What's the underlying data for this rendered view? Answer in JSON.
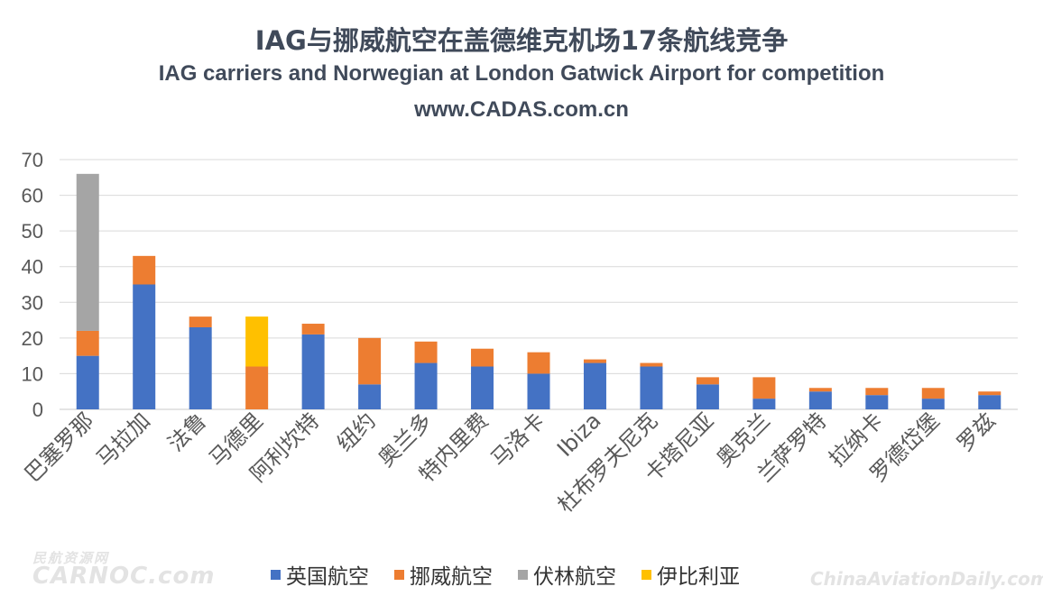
{
  "title_cn": "IAG与挪威航空在盖德维克机场17条航线竞争",
  "title_en": "IAG carriers and Norwegian at London Gatwick Airport for competition",
  "site": "www.CADAS.com.cn",
  "watermarks": {
    "left_top": "民航资源网",
    "left": "CARNOC.com",
    "right": "ChinaAviationDaily.com"
  },
  "chart_data": {
    "type": "bar",
    "stacked": true,
    "categories": [
      "巴塞罗那",
      "马拉加",
      "法鲁",
      "马德里",
      "阿利坎特",
      "纽约",
      "奥兰多",
      "特内里费",
      "马洛卡",
      "Ibiza",
      "杜布罗夫尼克",
      "卡塔尼亚",
      "奥克兰",
      "兰萨罗特",
      "拉纳卡",
      "罗德岱堡",
      "罗兹"
    ],
    "series": [
      {
        "name": "英国航空",
        "color": "#4472c4",
        "values": [
          15,
          35,
          23,
          0,
          21,
          7,
          13,
          12,
          10,
          13,
          12,
          7,
          3,
          5,
          4,
          3,
          4
        ]
      },
      {
        "name": "挪威航空",
        "color": "#ed7d31",
        "values": [
          7,
          8,
          3,
          12,
          3,
          13,
          6,
          5,
          6,
          1,
          1,
          2,
          6,
          1,
          2,
          3,
          1
        ]
      },
      {
        "name": "伏林航空",
        "color": "#a5a5a5",
        "values": [
          44,
          0,
          0,
          0,
          0,
          0,
          0,
          0,
          0,
          0,
          0,
          0,
          0,
          0,
          0,
          0,
          0
        ]
      },
      {
        "name": "伊比利亚",
        "color": "#ffc000",
        "values": [
          0,
          0,
          0,
          14,
          0,
          0,
          0,
          0,
          0,
          0,
          0,
          0,
          0,
          0,
          0,
          0,
          0
        ]
      }
    ],
    "ylim": [
      0,
      70
    ],
    "yticks": [
      0,
      10,
      20,
      30,
      40,
      50,
      60,
      70
    ],
    "grid": true,
    "legend": "bottom"
  }
}
